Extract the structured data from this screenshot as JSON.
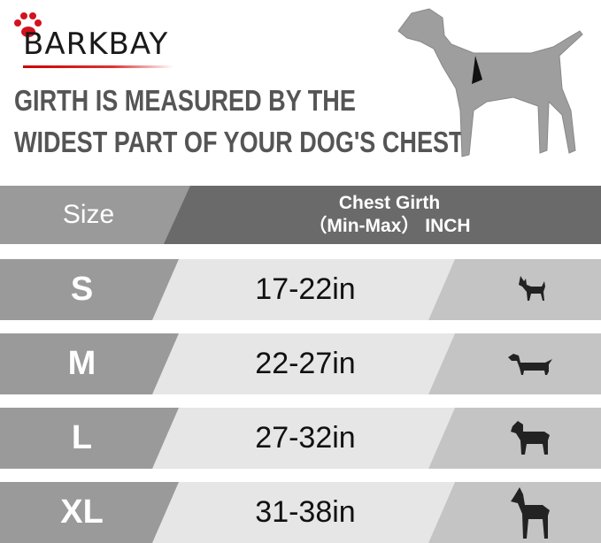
{
  "brand": {
    "name": "BARKBAY",
    "accent": "#d4121f"
  },
  "headline": {
    "line1": "GIRTH IS MEASURED BY THE",
    "line2": "WIDEST PART OF YOUR DOG'S CHEST."
  },
  "table": {
    "header": {
      "size": "Size",
      "girth_line1": "Chest Girth",
      "girth_line2": "（Min-Max） INCH"
    },
    "rows": [
      {
        "size": "S",
        "girth": "17-22in",
        "icon": "chihuahua-icon"
      },
      {
        "size": "M",
        "girth": "22-27in",
        "icon": "dachshund-icon"
      },
      {
        "size": "L",
        "girth": "27-32in",
        "icon": "labrador-icon"
      },
      {
        "size": "XL",
        "girth": "31-38in",
        "icon": "great-dane-icon"
      }
    ]
  }
}
